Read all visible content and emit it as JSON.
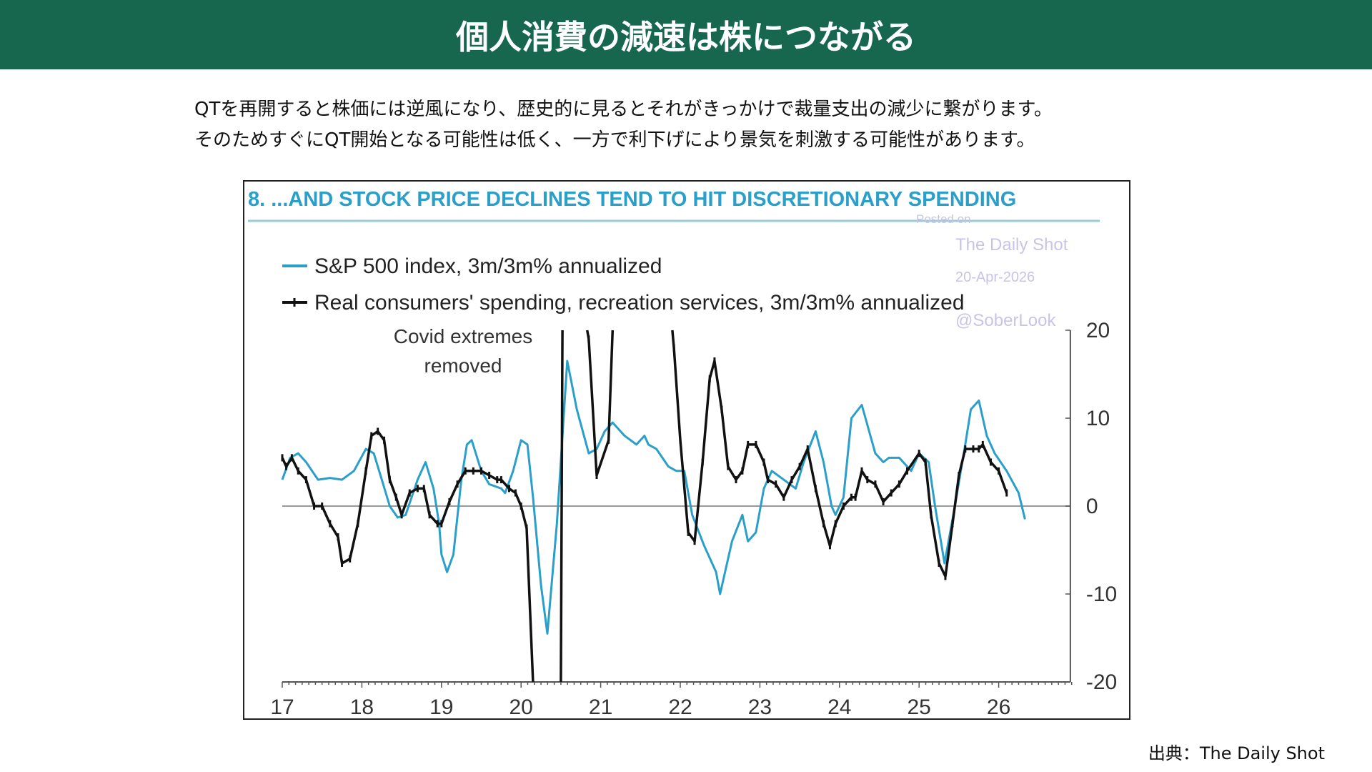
{
  "header": {
    "title": "個人消費の減速は株につながる"
  },
  "description": [
    "QTを再開すると株価には逆風になり、歴史的に見るとそれがきっかけで裁量支出の減少に繋がります。",
    "そのためすぐにQT開始となる可能性は低く、一方で利下げにより景気を刺激する可能性があります。"
  ],
  "source": "出典：The Daily Shot",
  "watermark": {
    "posted": "Posted on",
    "brand": "The Daily Shot",
    "date": "20-Apr-2026",
    "handle": "@SoberLook"
  },
  "colors": {
    "header": "#17664e",
    "sp500": "#2a9fc9",
    "spending": "#111111",
    "title": "#2a9fc9"
  },
  "chart_data": {
    "type": "line",
    "title": "8. ...AND STOCK PRICE DECLINES TEND TO HIT DISCRETIONARY SPENDING",
    "annotation": [
      "Covid extremes",
      "removed"
    ],
    "xticks": [
      "17",
      "18",
      "19",
      "20",
      "21",
      "22",
      "23",
      "24",
      "25",
      "26"
    ],
    "yticks": [
      "20",
      "10",
      "0",
      "-10",
      "-20"
    ],
    "ylim": [
      -20,
      20
    ],
    "xlim": [
      17,
      26.9
    ],
    "y_axis_side": "right",
    "legend": "top-left",
    "series": [
      {
        "name": "S&P 500 index, 3m/3m% annualized",
        "marker": "none",
        "points": [
          [
            17.0,
            3
          ],
          [
            17.1,
            5.5
          ],
          [
            17.2,
            6
          ],
          [
            17.3,
            5
          ],
          [
            17.45,
            3
          ],
          [
            17.6,
            3.2
          ],
          [
            17.75,
            3
          ],
          [
            17.9,
            4
          ],
          [
            18.05,
            6.5
          ],
          [
            18.15,
            6
          ],
          [
            18.25,
            3
          ],
          [
            18.35,
            0
          ],
          [
            18.45,
            -1.3
          ],
          [
            18.55,
            -1
          ],
          [
            18.7,
            3
          ],
          [
            18.8,
            5
          ],
          [
            18.9,
            2
          ],
          [
            18.97,
            -2
          ],
          [
            19.0,
            -5.5
          ],
          [
            19.07,
            -7.5
          ],
          [
            19.15,
            -5.5
          ],
          [
            19.25,
            3
          ],
          [
            19.32,
            7
          ],
          [
            19.38,
            7.5
          ],
          [
            19.5,
            4
          ],
          [
            19.6,
            2.5
          ],
          [
            19.75,
            2
          ],
          [
            19.8,
            1.5
          ],
          [
            19.9,
            4
          ],
          [
            20.0,
            7.5
          ],
          [
            20.08,
            7
          ],
          [
            20.15,
            1
          ],
          [
            20.25,
            -9
          ],
          [
            20.33,
            -14.5
          ],
          [
            20.45,
            -2
          ],
          [
            20.58,
            16.5
          ],
          [
            20.7,
            11
          ],
          [
            20.85,
            6
          ],
          [
            20.95,
            6.5
          ],
          [
            21.05,
            8.5
          ],
          [
            21.15,
            9.5
          ],
          [
            21.3,
            8
          ],
          [
            21.45,
            7
          ],
          [
            21.55,
            8
          ],
          [
            21.6,
            7
          ],
          [
            21.7,
            6.5
          ],
          [
            21.85,
            4.5
          ],
          [
            21.95,
            4
          ],
          [
            22.05,
            4
          ],
          [
            22.15,
            -1
          ],
          [
            22.3,
            -4.5
          ],
          [
            22.45,
            -7.5
          ],
          [
            22.5,
            -10
          ],
          [
            22.65,
            -4
          ],
          [
            22.78,
            -1
          ],
          [
            22.85,
            -4
          ],
          [
            22.95,
            -3
          ],
          [
            23.05,
            2
          ],
          [
            23.15,
            4
          ],
          [
            23.3,
            3
          ],
          [
            23.45,
            2
          ],
          [
            23.55,
            5
          ],
          [
            23.7,
            8.5
          ],
          [
            23.8,
            5
          ],
          [
            23.9,
            0
          ],
          [
            23.95,
            -1
          ],
          [
            24.05,
            1
          ],
          [
            24.15,
            10
          ],
          [
            24.28,
            11.5
          ],
          [
            24.45,
            6
          ],
          [
            24.55,
            5
          ],
          [
            24.62,
            5.5
          ],
          [
            24.75,
            5.5
          ],
          [
            24.9,
            4
          ],
          [
            25.0,
            6
          ],
          [
            25.12,
            5
          ],
          [
            25.2,
            0
          ],
          [
            25.32,
            -6.5
          ],
          [
            25.45,
            0
          ],
          [
            25.58,
            7
          ],
          [
            25.65,
            11
          ],
          [
            25.75,
            12
          ],
          [
            25.85,
            8
          ],
          [
            25.95,
            6
          ],
          [
            26.1,
            4
          ],
          [
            26.25,
            1.5
          ],
          [
            26.33,
            -1.5
          ]
        ]
      },
      {
        "name": "Real consumers' spending, recreation services, 3m/3m% annualized",
        "marker": "plus",
        "points": [
          [
            17.0,
            5.5
          ],
          [
            17.05,
            4.5
          ],
          [
            17.12,
            5.5
          ],
          [
            17.2,
            4
          ],
          [
            17.3,
            3
          ],
          [
            17.4,
            0
          ],
          [
            17.5,
            0
          ],
          [
            17.6,
            -2
          ],
          [
            17.7,
            -3.5
          ],
          [
            17.75,
            -6.5
          ],
          [
            17.85,
            -6
          ],
          [
            17.95,
            -2
          ],
          [
            18.05,
            4
          ],
          [
            18.12,
            8
          ],
          [
            18.2,
            8.5
          ],
          [
            18.28,
            7.5
          ],
          [
            18.35,
            3
          ],
          [
            18.43,
            1
          ],
          [
            18.5,
            -1
          ],
          [
            18.6,
            1.5
          ],
          [
            18.7,
            2
          ],
          [
            18.78,
            2
          ],
          [
            18.85,
            -1
          ],
          [
            18.95,
            -2
          ],
          [
            19.0,
            -2
          ],
          [
            19.1,
            0.5
          ],
          [
            19.2,
            2.5
          ],
          [
            19.3,
            4
          ],
          [
            19.4,
            4
          ],
          [
            19.5,
            4
          ],
          [
            19.6,
            3.5
          ],
          [
            19.7,
            3
          ],
          [
            19.75,
            3
          ],
          [
            19.85,
            2
          ],
          [
            19.93,
            1.5
          ],
          [
            20.0,
            0
          ],
          [
            20.07,
            -2.5
          ],
          [
            20.15,
            -20
          ],
          null,
          [
            20.5,
            -20
          ],
          [
            20.52,
            20
          ],
          null,
          [
            20.83,
            20
          ],
          [
            20.85,
            19
          ],
          [
            20.95,
            3.5
          ],
          [
            21.1,
            7.5
          ],
          [
            21.15,
            20
          ],
          null,
          [
            21.9,
            20
          ],
          [
            21.92,
            18
          ],
          [
            22.0,
            7.5
          ],
          [
            22.1,
            -3
          ],
          [
            22.18,
            -4
          ],
          [
            22.28,
            5
          ],
          [
            22.37,
            14.5
          ],
          [
            22.43,
            16.5
          ],
          [
            22.52,
            11
          ],
          [
            22.6,
            4.5
          ],
          [
            22.7,
            3
          ],
          [
            22.78,
            4
          ],
          [
            22.85,
            7
          ],
          [
            22.95,
            7
          ],
          [
            23.05,
            5
          ],
          [
            23.1,
            3
          ],
          [
            23.2,
            2.5
          ],
          [
            23.3,
            1
          ],
          [
            23.4,
            3
          ],
          [
            23.5,
            4.5
          ],
          [
            23.6,
            6.5
          ],
          [
            23.7,
            2
          ],
          [
            23.8,
            -2
          ],
          [
            23.88,
            -4.5
          ],
          [
            23.95,
            -2
          ],
          [
            24.05,
            0
          ],
          [
            24.15,
            1
          ],
          [
            24.2,
            1
          ],
          [
            24.28,
            4
          ],
          [
            24.35,
            3
          ],
          [
            24.45,
            2.5
          ],
          [
            24.55,
            0.5
          ],
          [
            24.65,
            1.5
          ],
          [
            24.75,
            2.5
          ],
          [
            24.85,
            4
          ],
          [
            25.0,
            6
          ],
          [
            25.08,
            5
          ],
          [
            25.15,
            -1
          ],
          [
            25.25,
            -6.5
          ],
          [
            25.33,
            -8
          ],
          [
            25.42,
            -2
          ],
          [
            25.5,
            3.5
          ],
          [
            25.58,
            6.5
          ],
          [
            25.68,
            6.5
          ],
          [
            25.75,
            6.5
          ],
          [
            25.8,
            7
          ],
          [
            25.9,
            5
          ],
          [
            26.0,
            4
          ],
          [
            26.1,
            1.5
          ]
        ]
      }
    ]
  }
}
